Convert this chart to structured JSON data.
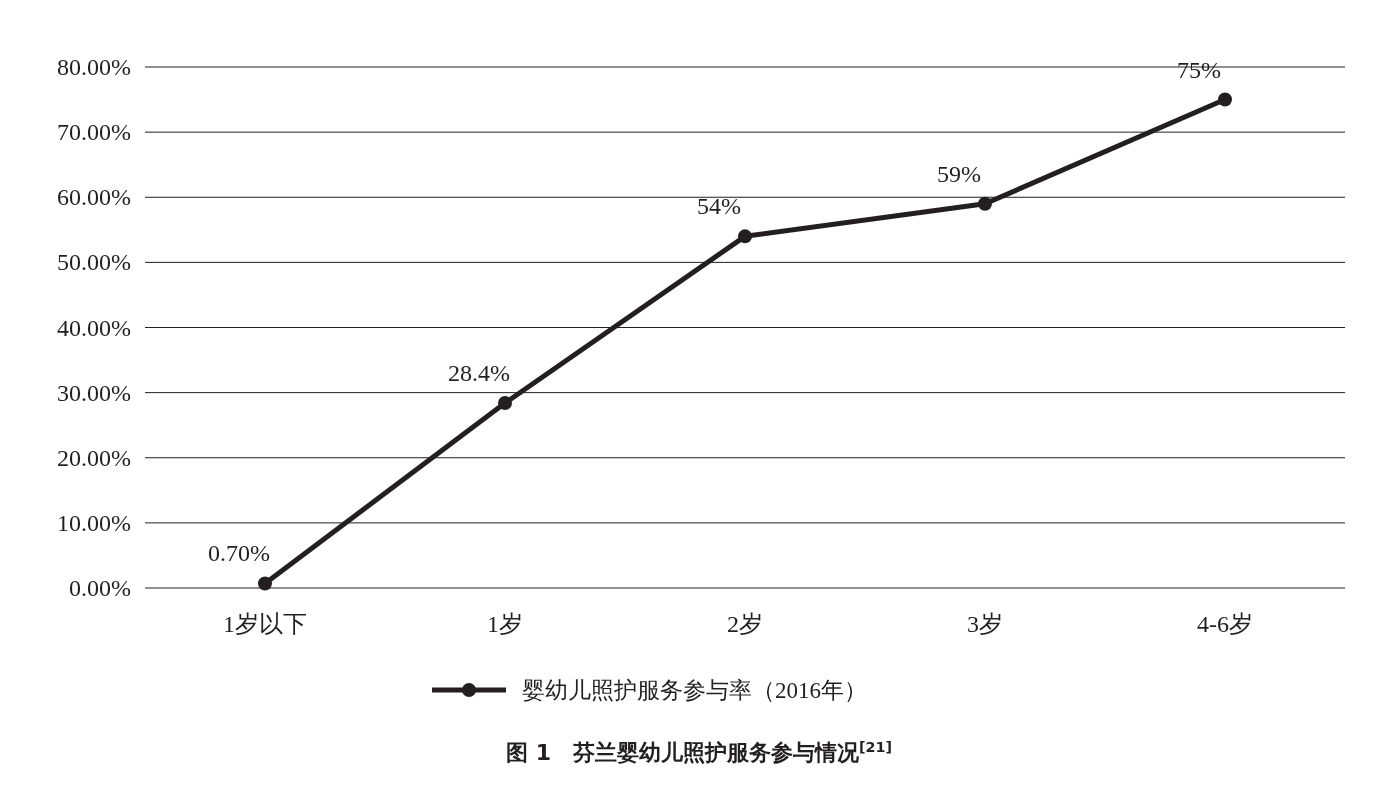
{
  "chart_data": {
    "type": "line",
    "title": "图 1　芬兰婴幼儿照护服务参与情况$^{[21]}$",
    "categories": [
      "1岁以下",
      "1岁",
      "2岁",
      "3岁",
      "4-6岁"
    ],
    "series": [
      {
        "name": "婴幼儿照护服务参与率（2016年）",
        "color": "#231f20",
        "values": [
          0.7,
          28.4,
          54,
          59,
          75
        ],
        "value_labels": [
          "0.70%",
          "28.4%",
          "54%",
          "59%",
          "75%"
        ]
      }
    ],
    "ylim": [
      0,
      80
    ],
    "yticks": [
      {
        "value": 0,
        "label": "0.00%"
      },
      {
        "value": 10,
        "label": "10.00%"
      },
      {
        "value": 20,
        "label": "20.00%"
      },
      {
        "value": 30,
        "label": "30.00%"
      },
      {
        "value": 40,
        "label": "40.00%"
      },
      {
        "value": 50,
        "label": "50.00%"
      },
      {
        "value": 60,
        "label": "60.00%"
      },
      {
        "value": 70,
        "label": "70.00%"
      },
      {
        "value": 80,
        "label": "80.00%"
      }
    ],
    "grid": "y",
    "legend": "bottom",
    "marker": "circle"
  }
}
